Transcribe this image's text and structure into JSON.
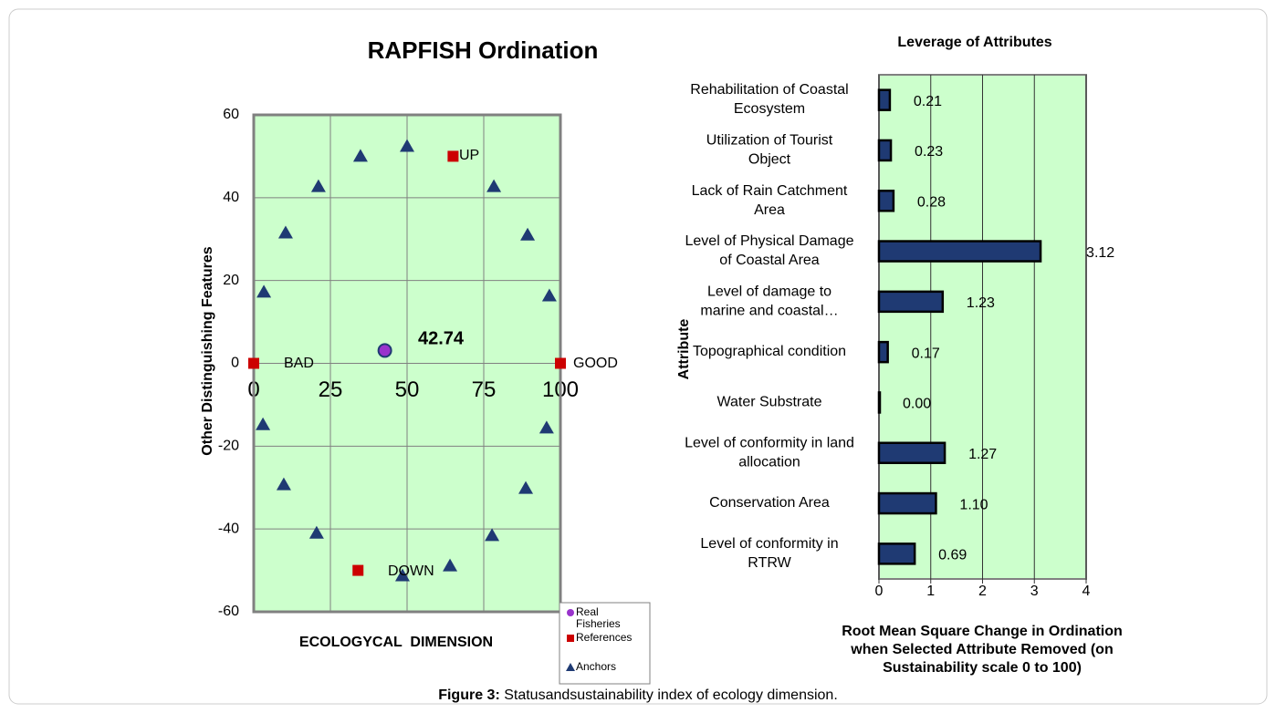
{
  "chart_data": [
    {
      "type": "scatter",
      "title": "RAPFISH Ordination",
      "ylabel": "Other Distinguishing Features",
      "xlabel": "ECOLOGYCAL  DIMENSION",
      "xlim": [
        0,
        100
      ],
      "xticks": [
        0,
        25,
        50,
        75,
        100
      ],
      "ylim": [
        -60,
        60
      ],
      "yticks": [
        -60,
        -40,
        -20,
        0,
        20,
        40,
        60
      ],
      "grid": true,
      "series": [
        {
          "name": "Real Fisheries",
          "color": "#9933cc",
          "marker": "circle",
          "x": [
            42.74
          ],
          "values": [
            3.1
          ]
        },
        {
          "name": "References",
          "color": "#cc0000",
          "marker": "square",
          "x": [
            0,
            100,
            65,
            34
          ],
          "values": [
            0,
            0,
            50,
            -50
          ]
        },
        {
          "name": "Anchors",
          "color": "#1f3a73",
          "marker": "triangle",
          "x": [
            3.3,
            10.4,
            21.1,
            34.8,
            50,
            78.3,
            89.3,
            96.4,
            3,
            9.8,
            20.5,
            48.5,
            64,
            77.7,
            88.7,
            95.5
          ],
          "values": [
            17.2,
            31.5,
            42.7,
            50,
            52.4,
            42.7,
            31,
            16.3,
            -14.8,
            -29.3,
            -41,
            -51.3,
            -48.9,
            -41.6,
            -30.2,
            -15.6
          ]
        }
      ],
      "annotations": [
        "42.74",
        "UP",
        "BAD",
        "GOOD",
        "DOWN"
      ]
    },
    {
      "type": "hbar",
      "title": "Leverage of Attributes",
      "ylabel": "Attribute",
      "xlabel": "Root Mean Square Change in Ordination\nwhen Selected Attribute Removed (on\nSustainability scale 0 to 100)",
      "categories": [
        "Rehabilitation of Coastal\nEcosystem",
        "Utilization of Tourist\nObject",
        "Lack of Rain Catchment\nArea",
        "Level of Physical Damage\nof Coastal Area",
        "Level of damage to\nmarine and coastal…",
        "Topographical condition",
        "Water Substrate",
        "Level of conformity in land\nallocation",
        "Conservation Area",
        "Level of conformity in\nRTRW"
      ],
      "values": [
        0.21,
        0.23,
        0.28,
        3.12,
        1.23,
        0.17,
        0,
        1.27,
        1.1,
        0.69
      ],
      "value_labels": [
        "0.21",
        "0.23",
        "0.28",
        "3.12",
        "1.23",
        "0.17",
        "0.00",
        "1.27",
        "1.10",
        "0.69"
      ],
      "color": "#1f3a73",
      "xlim": [
        0,
        4
      ],
      "xticks": [
        0,
        1,
        2,
        3,
        4
      ],
      "grid": true
    }
  ],
  "caption": {
    "label": "Figure 3:",
    "text": "Statusandsustainability index of ecology dimension."
  }
}
